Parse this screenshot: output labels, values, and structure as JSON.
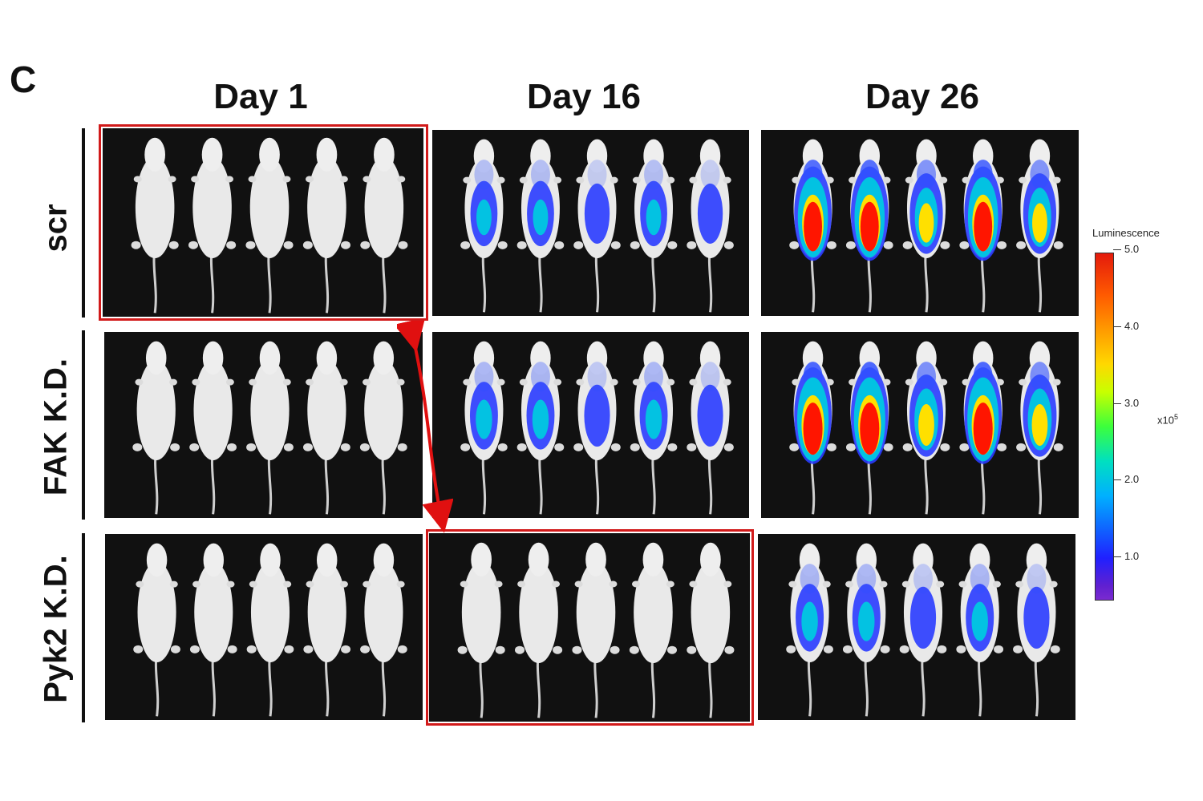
{
  "panel_letter": "C",
  "columns": [
    "Day 1",
    "Day 16",
    "Day 26"
  ],
  "rows": [
    "scr",
    "FAK K.D.",
    "Pyk2 K.D."
  ],
  "colorbar": {
    "title": "Luminescence",
    "ticks": [
      "5.0",
      "4.0",
      "3.0",
      "2.0",
      "1.0"
    ],
    "unit_base": "x10",
    "unit_exp": "5"
  },
  "highlight_color": "#d11a1a",
  "arrow_color": "#e01010",
  "signal_levels": [
    [
      0,
      0.35,
      0.95
    ],
    [
      0,
      0.4,
      1.0
    ],
    [
      0,
      0,
      0.4
    ]
  ]
}
